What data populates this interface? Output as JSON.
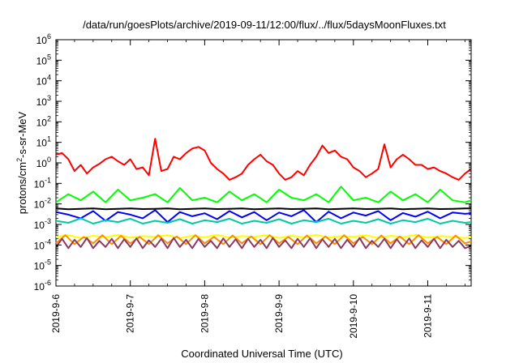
{
  "chart_data": {
    "type": "line",
    "title": "/data/run/goesPlots/archive/2019-09-11/12:00/flux/../flux/5daysMoonFluxes.txt",
    "xlabel": "Coordinated Universal Time (UTC)",
    "ylabel": "protons/cm²-s-sr-MeV",
    "ylabel_parts": {
      "pre": "protons/cm",
      "sup": "2",
      "post": "-s-sr-MeV"
    },
    "yscale": "log",
    "ylim": [
      1e-06,
      1000000.0
    ],
    "xlim": [
      "2019-09-06 00:00",
      "2019-09-11 14:00"
    ],
    "grid": false,
    "x_ticks": [
      "2019-9-6",
      "2019-9-7",
      "2019-9-8",
      "2019-9-9",
      "2019-9-10",
      "2019-9-11"
    ],
    "y_ticks": [
      {
        "base": "10",
        "exp": "-6"
      },
      {
        "base": "10",
        "exp": "-5"
      },
      {
        "base": "10",
        "exp": "-4"
      },
      {
        "base": "10",
        "exp": "-3"
      },
      {
        "base": "10",
        "exp": "-2"
      },
      {
        "base": "10",
        "exp": "-1"
      },
      {
        "base": "10",
        "exp": "0"
      },
      {
        "base": "10",
        "exp": "1"
      },
      {
        "base": "10",
        "exp": "2"
      },
      {
        "base": "10",
        "exp": "3"
      },
      {
        "base": "10",
        "exp": "4"
      },
      {
        "base": "10",
        "exp": "5"
      },
      {
        "base": "10",
        "exp": "6"
      }
    ],
    "series": [
      {
        "color": "#ff0000",
        "x_hours": [
          0,
          2,
          4,
          6,
          8,
          10,
          12,
          14,
          16,
          18,
          20,
          22,
          24,
          26,
          28,
          30,
          32,
          34,
          36,
          38,
          40,
          42,
          44,
          46,
          48,
          50,
          52,
          54,
          56,
          58,
          60,
          62,
          64,
          66,
          68,
          70,
          72,
          74,
          76,
          78,
          80,
          82,
          84,
          86,
          88,
          90,
          92,
          94,
          96,
          98,
          100,
          102,
          104,
          106,
          108,
          110,
          112,
          114,
          116,
          118,
          120,
          122,
          124,
          126,
          128,
          130,
          132,
          134
        ],
        "values": [
          2.5,
          3,
          1.5,
          0.4,
          0.8,
          0.3,
          0.6,
          0.9,
          1.5,
          2,
          1.2,
          0.8,
          1.5,
          0.5,
          0.6,
          0.25,
          15,
          0.4,
          0.5,
          2,
          1.5,
          3,
          5,
          6,
          4,
          1,
          0.5,
          0.3,
          0.15,
          0.2,
          0.3,
          0.8,
          1.5,
          2.5,
          1.2,
          0.8,
          0.3,
          0.15,
          0.2,
          0.4,
          0.25,
          0.8,
          2,
          7,
          3,
          4,
          2,
          1.5,
          0.6,
          0.4,
          0.2,
          0.3,
          0.5,
          8,
          0.6,
          1.5,
          2.5,
          1.5,
          0.8,
          0.8,
          0.5,
          0.6,
          0.4,
          0.3,
          0.2,
          0.15,
          0.3,
          0.5
        ]
      },
      {
        "color": "#00ff00",
        "x_hours": [
          0,
          4,
          8,
          12,
          16,
          20,
          24,
          28,
          32,
          36,
          40,
          44,
          48,
          52,
          56,
          60,
          64,
          68,
          72,
          76,
          80,
          84,
          88,
          92,
          96,
          100,
          104,
          108,
          112,
          116,
          120,
          124,
          128,
          132,
          134
        ],
        "values": [
          0.012,
          0.03,
          0.015,
          0.04,
          0.012,
          0.05,
          0.015,
          0.02,
          0.03,
          0.012,
          0.06,
          0.015,
          0.02,
          0.012,
          0.04,
          0.015,
          0.03,
          0.012,
          0.05,
          0.02,
          0.015,
          0.03,
          0.012,
          0.07,
          0.015,
          0.02,
          0.012,
          0.04,
          0.015,
          0.03,
          0.012,
          0.05,
          0.015,
          0.012,
          0.015
        ]
      },
      {
        "color": "#0000ff",
        "x_hours": [
          0,
          4,
          8,
          12,
          16,
          20,
          24,
          28,
          32,
          36,
          40,
          44,
          48,
          52,
          56,
          60,
          64,
          68,
          72,
          76,
          80,
          84,
          88,
          92,
          96,
          100,
          104,
          108,
          112,
          116,
          120,
          124,
          128,
          132,
          134
        ],
        "values": [
          0.004,
          0.003,
          0.002,
          0.0045,
          0.0015,
          0.004,
          0.003,
          0.002,
          0.005,
          0.0013,
          0.004,
          0.0025,
          0.0035,
          0.0018,
          0.0045,
          0.0022,
          0.004,
          0.0016,
          0.0038,
          0.0025,
          0.005,
          0.0013,
          0.0042,
          0.002,
          0.0038,
          0.0027,
          0.0045,
          0.0016,
          0.0036,
          0.0024,
          0.0042,
          0.002,
          0.0038,
          0.0033,
          0.0035
        ]
      },
      {
        "color": "#000000",
        "x_hours": [
          0,
          4,
          8,
          12,
          16,
          20,
          24,
          28,
          32,
          36,
          40,
          44,
          48,
          52,
          56,
          60,
          64,
          68,
          72,
          76,
          80,
          84,
          88,
          92,
          96,
          100,
          104,
          108,
          112,
          116,
          120,
          124,
          128,
          132,
          134
        ],
        "values": [
          0.006,
          0.0055,
          0.0058,
          0.006,
          0.0055,
          0.0058,
          0.006,
          0.0056,
          0.0058,
          0.006,
          0.0055,
          0.0058,
          0.006,
          0.0056,
          0.0058,
          0.006,
          0.0055,
          0.0058,
          0.006,
          0.0056,
          0.0058,
          0.006,
          0.0055,
          0.0058,
          0.006,
          0.0056,
          0.0058,
          0.006,
          0.0055,
          0.0058,
          0.006,
          0.0056,
          0.0058,
          0.006,
          0.006
        ]
      },
      {
        "color": "#00c8a8",
        "x_hours": [
          0,
          4,
          8,
          12,
          16,
          20,
          24,
          28,
          32,
          36,
          40,
          44,
          48,
          52,
          56,
          60,
          64,
          68,
          72,
          76,
          80,
          84,
          88,
          92,
          96,
          100,
          104,
          108,
          112,
          116,
          120,
          124,
          128,
          132,
          134
        ],
        "values": [
          0.0015,
          0.0012,
          0.002,
          0.0011,
          0.0016,
          0.0013,
          0.0019,
          0.0011,
          0.0015,
          0.0012,
          0.0018,
          0.0011,
          0.0016,
          0.0013,
          0.0019,
          0.0011,
          0.0015,
          0.0012,
          0.0018,
          0.0011,
          0.0016,
          0.0013,
          0.0019,
          0.0011,
          0.0015,
          0.0012,
          0.0018,
          0.0011,
          0.0016,
          0.0013,
          0.0019,
          0.0011,
          0.0015,
          0.0012,
          0.0013
        ]
      },
      {
        "color": "#ffff00",
        "x_hours": [
          0,
          4,
          8,
          12,
          16,
          20,
          24,
          28,
          32,
          36,
          40,
          44,
          48,
          52,
          56,
          60,
          64,
          68,
          72,
          76,
          80,
          84,
          88,
          92,
          96,
          100,
          104,
          108,
          112,
          116,
          120,
          124,
          128,
          132,
          134
        ],
        "values": [
          0.00025,
          0.0003,
          0.00022,
          0.00028,
          0.00024,
          0.00031,
          0.00023,
          0.00027,
          0.00025,
          0.0003,
          0.00022,
          0.00028,
          0.00024,
          0.00031,
          0.00023,
          0.00027,
          0.00025,
          0.0003,
          0.00022,
          0.00028,
          0.00024,
          0.00031,
          0.00023,
          0.00027,
          0.00025,
          0.0003,
          0.00022,
          0.00028,
          0.00024,
          0.00031,
          0.00023,
          0.00027,
          0.00025,
          0.00022,
          0.00024
        ]
      },
      {
        "color": "#ff8c00",
        "x_hours": [
          0,
          3,
          6,
          9,
          12,
          15,
          18,
          21,
          24,
          27,
          30,
          33,
          36,
          39,
          42,
          45,
          48,
          51,
          54,
          57,
          60,
          63,
          66,
          69,
          72,
          75,
          78,
          81,
          84,
          87,
          90,
          93,
          96,
          99,
          102,
          105,
          108,
          111,
          114,
          117,
          120,
          123,
          126,
          129,
          132,
          134
        ],
        "values": [
          0.00012,
          0.0003,
          0.00011,
          0.00025,
          0.00012,
          0.0003,
          0.00011,
          0.00028,
          0.00012,
          0.00025,
          0.00011,
          0.0003,
          0.00012,
          0.00026,
          0.00011,
          0.0003,
          0.00012,
          0.00025,
          0.00011,
          0.00029,
          0.00012,
          0.00026,
          0.00011,
          0.0003,
          0.00012,
          0.00025,
          0.00011,
          0.00029,
          0.00012,
          0.00026,
          0.00011,
          0.0003,
          0.00012,
          0.00025,
          0.00011,
          0.00029,
          0.00012,
          0.00026,
          0.00011,
          0.0003,
          0.00012,
          0.00025,
          0.00011,
          0.00029,
          0.00012,
          0.00015
        ]
      },
      {
        "color": "#8b3a62",
        "x_hours": [
          0,
          2,
          4,
          6,
          8,
          10,
          12,
          14,
          16,
          18,
          20,
          22,
          24,
          26,
          28,
          30,
          32,
          34,
          36,
          38,
          40,
          42,
          44,
          46,
          48,
          50,
          52,
          54,
          56,
          58,
          60,
          62,
          64,
          66,
          68,
          70,
          72,
          74,
          76,
          78,
          80,
          82,
          84,
          86,
          88,
          90,
          92,
          94,
          96,
          98,
          100,
          102,
          104,
          106,
          108,
          110,
          112,
          114,
          116,
          118,
          120,
          122,
          124,
          126,
          128,
          130,
          132,
          134
        ],
        "values": [
          8e-05,
          0.0002,
          7e-05,
          0.00018,
          8e-05,
          0.00022,
          7e-05,
          0.00016,
          8e-05,
          0.0002,
          7e-05,
          0.00019,
          8e-05,
          0.00021,
          7e-05,
          0.00017,
          8e-05,
          0.0002,
          7e-05,
          0.00022,
          8e-05,
          0.00018,
          7e-05,
          0.0002,
          8e-05,
          0.00016,
          7e-05,
          0.00021,
          8e-05,
          0.00019,
          7e-05,
          0.0002,
          8e-05,
          0.00018,
          7e-05,
          0.00022,
          8e-05,
          0.00017,
          7e-05,
          0.0002,
          8e-05,
          0.00021,
          7e-05,
          0.00019,
          8e-05,
          0.0002,
          7e-05,
          0.00018,
          8e-05,
          0.00022,
          7e-05,
          0.00016,
          8e-05,
          0.0002,
          7e-05,
          0.00019,
          8e-05,
          0.00021,
          7e-05,
          0.00017,
          8e-05,
          0.0002,
          7e-05,
          0.00018,
          8e-05,
          0.00016,
          7e-05,
          9e-05
        ]
      }
    ]
  }
}
